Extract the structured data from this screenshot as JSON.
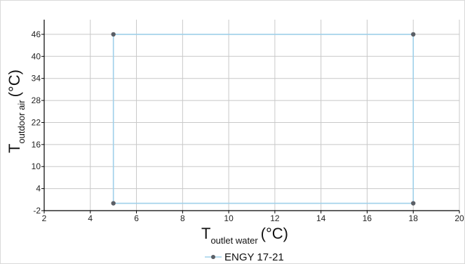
{
  "chart_data": {
    "type": "line",
    "x_axis": {
      "main": "T",
      "sub": "outlet water",
      "unit": "(°C)",
      "min": 2,
      "max": 20,
      "ticks": [
        2,
        4,
        6,
        8,
        10,
        12,
        14,
        16,
        18,
        20
      ]
    },
    "y_axis": {
      "main": "T",
      "sub": "outdoor air",
      "unit": "(°C)",
      "min": -2,
      "max": 50,
      "ticks": [
        -2,
        4,
        10,
        16,
        22,
        28,
        34,
        40,
        46
      ]
    },
    "grid": true,
    "legend_position": "bottom-center",
    "series": [
      {
        "name": "ENGY 17-21",
        "line_color": "#9fd0ea",
        "marker_color": "#5b5f66",
        "points": [
          {
            "x": 5,
            "y": 46
          },
          {
            "x": 18,
            "y": 46
          },
          {
            "x": 18,
            "y": 0
          },
          {
            "x": 5,
            "y": 0
          },
          {
            "x": 5,
            "y": 46
          }
        ]
      }
    ]
  }
}
